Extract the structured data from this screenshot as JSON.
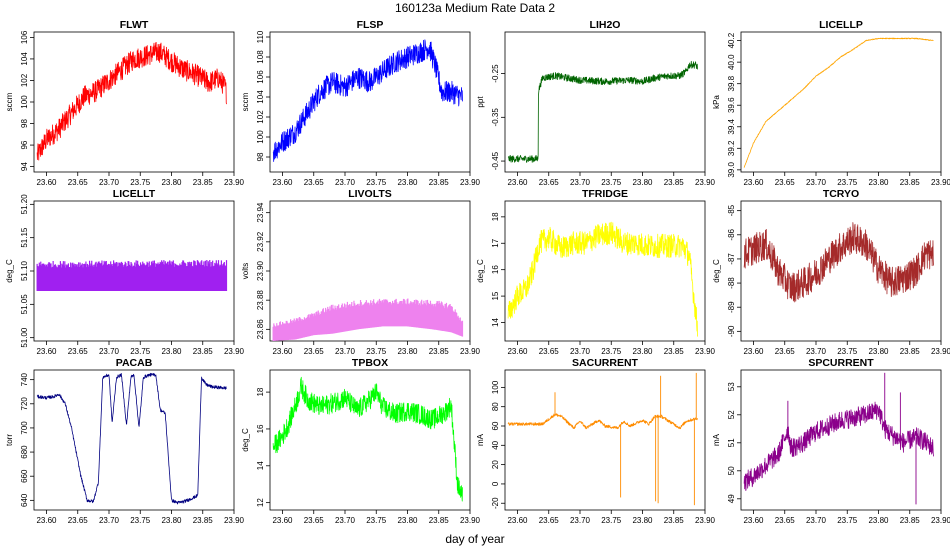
{
  "figure": {
    "title": "160123a   Medium Rate Data 2",
    "xlabel": "day of year"
  },
  "chart_data": [
    {
      "type": "line",
      "title": "FLWT",
      "ylabel": "sccm",
      "color": "#ff0000",
      "xlim": [
        23.58,
        23.9
      ],
      "ylim": [
        93.5,
        106.5
      ],
      "xticks": [
        23.6,
        23.65,
        23.7,
        23.75,
        23.8,
        23.85,
        23.9
      ],
      "yticks": [
        94,
        96,
        98,
        100,
        102,
        104,
        106
      ],
      "xticklabels": [
        "23.60",
        "23.65",
        "23.70",
        "23.75",
        "23.80",
        "23.85",
        "23.90"
      ],
      "yticklabels": [
        "94",
        "96",
        "98",
        "100",
        "102",
        "104",
        "106"
      ],
      "noise": 1.0,
      "series": [
        {
          "name": "FLWT",
          "x": [
            23.585,
            23.6,
            23.62,
            23.64,
            23.66,
            23.68,
            23.7,
            23.72,
            23.74,
            23.76,
            23.78,
            23.8,
            23.82,
            23.84,
            23.86,
            23.875,
            23.885,
            23.888
          ],
          "y": [
            95.0,
            96.5,
            97.5,
            99.0,
            100.5,
            101.0,
            102.0,
            103.0,
            104.0,
            104.3,
            104.7,
            103.8,
            103.0,
            102.5,
            101.8,
            102.2,
            101.5,
            100.8
          ]
        }
      ]
    },
    {
      "type": "line",
      "title": "FLSP",
      "ylabel": "sccm",
      "color": "#0000ff",
      "xlim": [
        23.58,
        23.9
      ],
      "ylim": [
        96.5,
        110.5
      ],
      "xticks": [
        23.6,
        23.65,
        23.7,
        23.75,
        23.8,
        23.85,
        23.9
      ],
      "yticks": [
        98,
        100,
        102,
        104,
        106,
        108,
        110
      ],
      "xticklabels": [
        "23.60",
        "23.65",
        "23.70",
        "23.75",
        "23.80",
        "23.85",
        "23.90"
      ],
      "yticklabels": [
        "98",
        "100",
        "102",
        "104",
        "106",
        "108",
        "110"
      ],
      "noise": 1.1,
      "series": [
        {
          "name": "FLSP",
          "x": [
            23.585,
            23.6,
            23.62,
            23.64,
            23.66,
            23.68,
            23.7,
            23.72,
            23.74,
            23.76,
            23.78,
            23.8,
            23.82,
            23.835,
            23.845,
            23.855,
            23.87,
            23.888
          ],
          "y": [
            98.5,
            99.5,
            100.5,
            102.5,
            104.5,
            105.5,
            105.0,
            106.0,
            105.5,
            106.5,
            107.5,
            108.0,
            108.5,
            109.0,
            107.0,
            104.5,
            104.5,
            104.0
          ]
        }
      ]
    },
    {
      "type": "line",
      "title": "LIH2O",
      "ylabel": "ppt",
      "color": "#006400",
      "xlim": [
        23.58,
        23.9
      ],
      "ylim": [
        -0.475,
        -0.155
      ],
      "xticks": [
        23.6,
        23.65,
        23.7,
        23.75,
        23.8,
        23.85,
        23.9
      ],
      "yticks": [
        -0.45,
        -0.35,
        -0.25
      ],
      "xticklabels": [
        "23.60",
        "23.65",
        "23.70",
        "23.75",
        "23.80",
        "23.85",
        "23.90"
      ],
      "yticklabels": [
        "-0.45",
        "-0.35",
        "-0.25"
      ],
      "noise": 0.008,
      "series": [
        {
          "name": "LIH2O",
          "x": [
            23.585,
            23.62,
            23.633,
            23.6335,
            23.64,
            23.66,
            23.7,
            23.74,
            23.78,
            23.8,
            23.82,
            23.84,
            23.86,
            23.87,
            23.875,
            23.885,
            23.888
          ],
          "y": [
            -0.445,
            -0.445,
            -0.445,
            -0.29,
            -0.26,
            -0.255,
            -0.265,
            -0.268,
            -0.265,
            -0.268,
            -0.26,
            -0.255,
            -0.255,
            -0.245,
            -0.23,
            -0.23,
            -0.235
          ]
        }
      ]
    },
    {
      "type": "line",
      "title": "LICELLP",
      "ylabel": "kPa",
      "color": "#ffa500",
      "xlim": [
        23.58,
        23.9
      ],
      "ylim": [
        38.98,
        40.28
      ],
      "xticks": [
        23.6,
        23.65,
        23.7,
        23.75,
        23.8,
        23.85,
        23.9
      ],
      "yticks": [
        39.0,
        39.2,
        39.4,
        39.6,
        39.8,
        40.0,
        40.2
      ],
      "xticklabels": [
        "23.60",
        "23.65",
        "23.70",
        "23.75",
        "23.80",
        "23.85",
        "23.90"
      ],
      "yticklabels": [
        "39.0",
        "39.2",
        "39.4",
        "39.6",
        "39.8",
        "40.0",
        "40.2"
      ],
      "noise": 0.004,
      "series": [
        {
          "name": "LICELLP",
          "x": [
            23.585,
            23.6,
            23.62,
            23.64,
            23.66,
            23.68,
            23.7,
            23.72,
            23.74,
            23.76,
            23.78,
            23.8,
            23.82,
            23.84,
            23.86,
            23.888
          ],
          "y": [
            39.02,
            39.25,
            39.45,
            39.55,
            39.65,
            39.75,
            39.87,
            39.95,
            40.05,
            40.12,
            40.2,
            40.22,
            40.22,
            40.22,
            40.22,
            40.2
          ]
        }
      ]
    },
    {
      "type": "line",
      "title": "LICELLT",
      "ylabel": "deg_C",
      "color": "#a020f0",
      "xlim": [
        23.58,
        23.9
      ],
      "ylim": [
        50.995,
        51.205
      ],
      "xticks": [
        23.6,
        23.65,
        23.7,
        23.75,
        23.8,
        23.85,
        23.9
      ],
      "yticks": [
        51.0,
        51.05,
        51.1,
        51.15,
        51.2
      ],
      "xticklabels": [
        "23.60",
        "23.65",
        "23.70",
        "23.75",
        "23.80",
        "23.85",
        "23.90"
      ],
      "yticklabels": [
        "51.00",
        "51.05",
        "51.10",
        "51.15",
        "51.20"
      ],
      "noise": 0,
      "band": true,
      "series": [
        {
          "name": "LICELLT",
          "x": [
            23.585,
            23.888
          ],
          "ylow": [
            51.07,
            51.07
          ],
          "yhigh": [
            51.11,
            51.112
          ]
        }
      ]
    },
    {
      "type": "line",
      "title": "LIVOLTS",
      "ylabel": "volts",
      "color": "#ee82ee",
      "xlim": [
        23.58,
        23.9
      ],
      "ylim": [
        23.852,
        23.948
      ],
      "xticks": [
        23.6,
        23.65,
        23.7,
        23.75,
        23.8,
        23.85,
        23.9
      ],
      "yticks": [
        23.86,
        23.88,
        23.9,
        23.92,
        23.94
      ],
      "xticklabels": [
        "23.60",
        "23.65",
        "23.70",
        "23.75",
        "23.80",
        "23.85",
        "23.90"
      ],
      "yticklabels": [
        "23.86",
        "23.88",
        "23.90",
        "23.92",
        "23.94"
      ],
      "noise": 0,
      "band": true,
      "series": [
        {
          "name": "LIVOLTS",
          "x": [
            23.585,
            23.62,
            23.65,
            23.68,
            23.72,
            23.76,
            23.8,
            23.84,
            23.87,
            23.888
          ],
          "ylow": [
            23.852,
            23.853,
            23.856,
            23.857,
            23.86,
            23.862,
            23.862,
            23.86,
            23.858,
            23.855
          ],
          "yhigh": [
            23.863,
            23.866,
            23.87,
            23.875,
            23.878,
            23.879,
            23.879,
            23.878,
            23.876,
            23.865
          ]
        }
      ]
    },
    {
      "type": "line",
      "title": "TFRIDGE",
      "ylabel": "deg_C",
      "color": "#ffff00",
      "xlim": [
        23.58,
        23.9
      ],
      "ylim": [
        13.3,
        18.6
      ],
      "xticks": [
        23.6,
        23.65,
        23.7,
        23.75,
        23.8,
        23.85,
        23.9
      ],
      "yticks": [
        14,
        15,
        16,
        17,
        18
      ],
      "xticklabels": [
        "23.60",
        "23.65",
        "23.70",
        "23.75",
        "23.80",
        "23.85",
        "23.90"
      ],
      "yticklabels": [
        "14",
        "15",
        "16",
        "17",
        "18"
      ],
      "noise": 0.45,
      "series": [
        {
          "name": "TFRIDGE",
          "x": [
            23.585,
            23.6,
            23.615,
            23.625,
            23.635,
            23.65,
            23.67,
            23.69,
            23.71,
            23.73,
            23.75,
            23.77,
            23.79,
            23.81,
            23.83,
            23.85,
            23.865,
            23.875,
            23.882,
            23.888
          ],
          "y": [
            14.3,
            15.0,
            15.3,
            16.0,
            17.0,
            17.2,
            16.8,
            17.0,
            17.0,
            17.3,
            17.4,
            17.0,
            17.0,
            16.9,
            16.9,
            16.9,
            16.9,
            16.5,
            15.0,
            13.8
          ]
        }
      ]
    },
    {
      "type": "line",
      "title": "TCRYO",
      "ylabel": "deg_C",
      "color": "#a52a2a",
      "xlim": [
        23.58,
        23.9
      ],
      "ylim": [
        -90.4,
        -84.6
      ],
      "xticks": [
        23.6,
        23.65,
        23.7,
        23.75,
        23.8,
        23.85,
        23.9
      ],
      "yticks": [
        -90,
        -89,
        -88,
        -87,
        -86,
        -85
      ],
      "xticklabels": [
        "23.60",
        "23.65",
        "23.70",
        "23.75",
        "23.80",
        "23.85",
        "23.90"
      ],
      "yticklabels": [
        "-90",
        "-89",
        "-88",
        "-87",
        "-86",
        "-85"
      ],
      "noise": 0.65,
      "series": [
        {
          "name": "TCRYO",
          "x": [
            23.585,
            23.6,
            23.62,
            23.64,
            23.66,
            23.68,
            23.7,
            23.72,
            23.74,
            23.76,
            23.78,
            23.8,
            23.82,
            23.84,
            23.86,
            23.875,
            23.888
          ],
          "y": [
            -86.8,
            -86.6,
            -86.4,
            -87.5,
            -88.2,
            -88.0,
            -87.6,
            -87.0,
            -86.5,
            -86.1,
            -86.4,
            -87.4,
            -88.0,
            -87.8,
            -87.5,
            -86.8,
            -86.8
          ]
        }
      ]
    },
    {
      "type": "line",
      "title": "PACAB",
      "ylabel": "torr",
      "color": "#000080",
      "xlim": [
        23.58,
        23.9
      ],
      "ylim": [
        632,
        748
      ],
      "xticks": [
        23.6,
        23.65,
        23.7,
        23.75,
        23.8,
        23.85,
        23.9
      ],
      "yticks": [
        640,
        660,
        680,
        700,
        720,
        740
      ],
      "xticklabels": [
        "23.60",
        "23.65",
        "23.70",
        "23.75",
        "23.80",
        "23.85",
        "23.90"
      ],
      "yticklabels": [
        "640",
        "660",
        "680",
        "700",
        "720",
        "740"
      ],
      "noise": 1.3,
      "series": [
        {
          "name": "PACAB",
          "x": [
            23.585,
            23.6,
            23.612,
            23.62,
            23.63,
            23.64,
            23.655,
            23.665,
            23.675,
            23.683,
            23.69,
            23.7,
            23.705,
            23.712,
            23.72,
            23.728,
            23.735,
            23.74,
            23.748,
            23.755,
            23.765,
            23.775,
            23.782,
            23.79,
            23.8,
            23.81,
            23.82,
            23.83,
            23.842,
            23.848,
            23.855,
            23.865,
            23.888
          ],
          "y": [
            726,
            725,
            726,
            728,
            720,
            700,
            660,
            640,
            639,
            655,
            742,
            744,
            704,
            742,
            744,
            702,
            742,
            744,
            700,
            742,
            744,
            744,
            715,
            712,
            640,
            638,
            639,
            641,
            644,
            742,
            736,
            734,
            733
          ]
        }
      ]
    },
    {
      "type": "line",
      "title": "TPBOX",
      "ylabel": "deg_C",
      "color": "#00ff00",
      "xlim": [
        23.58,
        23.9
      ],
      "ylim": [
        11.6,
        19.2
      ],
      "xticks": [
        23.6,
        23.65,
        23.7,
        23.75,
        23.8,
        23.85,
        23.9
      ],
      "yticks": [
        12,
        14,
        16,
        18
      ],
      "xticklabels": [
        "23.60",
        "23.65",
        "23.70",
        "23.75",
        "23.80",
        "23.85",
        "23.90"
      ],
      "yticklabels": [
        "12",
        "14",
        "16",
        "18"
      ],
      "noise": 0.55,
      "series": [
        {
          "name": "TPBOX",
          "x": [
            23.585,
            23.6,
            23.61,
            23.62,
            23.63,
            23.64,
            23.66,
            23.68,
            23.7,
            23.72,
            23.74,
            23.75,
            23.76,
            23.78,
            23.8,
            23.82,
            23.84,
            23.86,
            23.87,
            23.88,
            23.888
          ],
          "y": [
            15.0,
            15.6,
            16.3,
            17.2,
            18.3,
            17.6,
            17.2,
            17.4,
            17.7,
            17.0,
            17.6,
            18.0,
            17.2,
            16.8,
            17.0,
            16.8,
            16.5,
            16.9,
            17.3,
            13.0,
            12.3
          ]
        }
      ]
    },
    {
      "type": "line",
      "title": "SACURRENT",
      "ylabel": "mA",
      "color": "#ff8c00",
      "xlim": [
        23.58,
        23.9
      ],
      "ylim": [
        -27,
        118
      ],
      "xticks": [
        23.6,
        23.65,
        23.7,
        23.75,
        23.8,
        23.85,
        23.9
      ],
      "yticks": [
        -20,
        0,
        20,
        40,
        60,
        80,
        100
      ],
      "xticklabels": [
        "23.60",
        "23.65",
        "23.70",
        "23.75",
        "23.80",
        "23.85",
        "23.90"
      ],
      "yticklabels": [
        "-20",
        "0",
        "20",
        "40",
        "60",
        "80",
        "100"
      ],
      "noise": 1.5,
      "series": [
        {
          "name": "SACURRENT",
          "x": [
            23.585,
            23.6,
            23.62,
            23.64,
            23.66,
            23.67,
            23.69,
            23.7,
            23.71,
            23.72,
            23.73,
            23.74,
            23.76,
            23.77,
            23.78,
            23.8,
            23.81,
            23.82,
            23.83,
            23.84,
            23.86,
            23.87,
            23.888
          ],
          "y": [
            62,
            62,
            62,
            62,
            72,
            70,
            58,
            65,
            58,
            62,
            66,
            60,
            58,
            65,
            60,
            66,
            62,
            70,
            70,
            66,
            58,
            65,
            68
          ]
        },
        {
          "name": "spikes",
          "x": [
            23.66,
            23.765,
            23.821,
            23.825,
            23.829,
            23.883,
            23.886
          ],
          "y": [
            95,
            -14,
            -18,
            -20,
            112,
            -22,
            115
          ]
        }
      ]
    },
    {
      "type": "line",
      "title": "SPCURRENT",
      "ylabel": "mA",
      "color": "#8b008b",
      "xlim": [
        23.58,
        23.9
      ],
      "ylim": [
        48.6,
        53.6
      ],
      "xticks": [
        23.6,
        23.65,
        23.7,
        23.75,
        23.8,
        23.85,
        23.9
      ],
      "yticks": [
        49,
        50,
        51,
        52,
        53
      ],
      "xticklabels": [
        "23.60",
        "23.65",
        "23.70",
        "23.75",
        "23.80",
        "23.85",
        "23.90"
      ],
      "yticklabels": [
        "49",
        "50",
        "51",
        "52",
        "53"
      ],
      "noise": 0.35,
      "series": [
        {
          "name": "SPCURRENT",
          "x": [
            23.585,
            23.6,
            23.62,
            23.64,
            23.655,
            23.66,
            23.68,
            23.7,
            23.72,
            23.74,
            23.76,
            23.78,
            23.8,
            23.81,
            23.82,
            23.84,
            23.86,
            23.87,
            23.888
          ],
          "y": [
            49.6,
            49.8,
            50.2,
            50.6,
            51.5,
            50.8,
            51.0,
            51.4,
            51.6,
            51.8,
            51.9,
            52.0,
            52.2,
            51.5,
            51.3,
            51.0,
            51.2,
            51.1,
            50.8
          ]
        },
        {
          "name": "spikes",
          "x": [
            23.655,
            23.81,
            23.835,
            23.86
          ],
          "y": [
            52.5,
            53.5,
            52.8,
            48.8
          ]
        }
      ]
    }
  ]
}
